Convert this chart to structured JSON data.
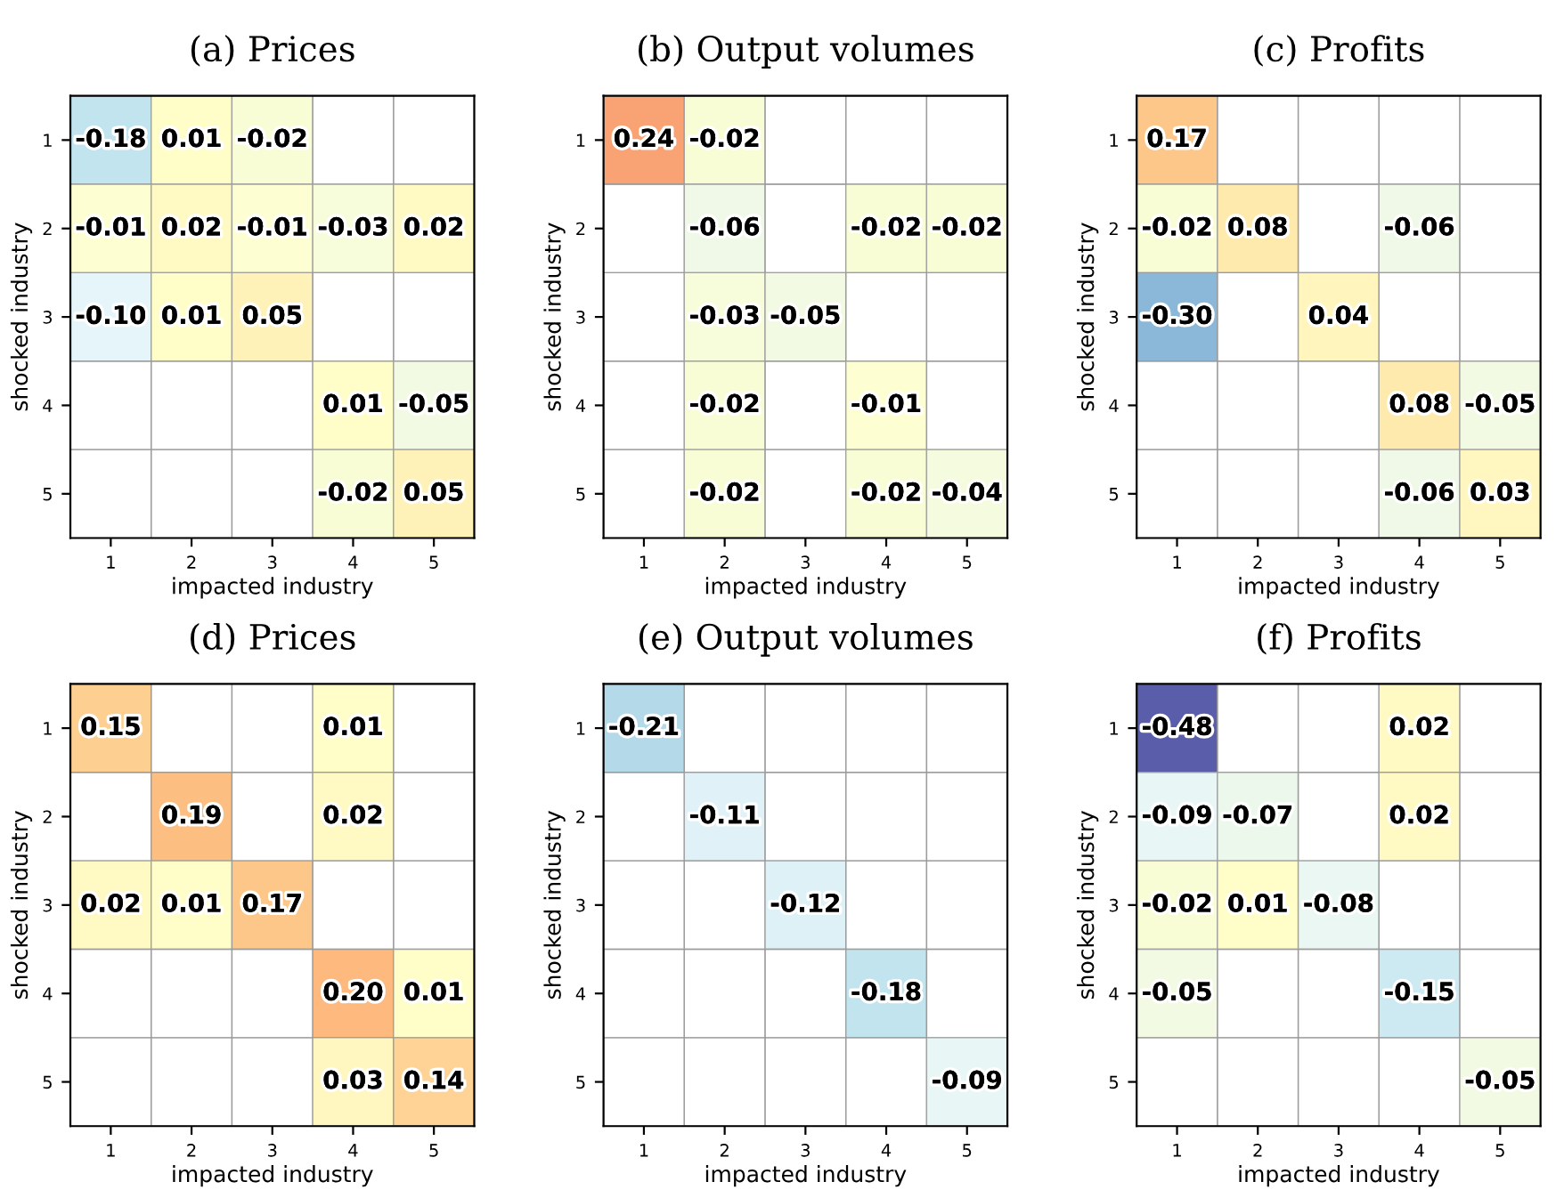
{
  "chart_data": [
    {
      "type": "heatmap",
      "title": "(a) Prices",
      "xlabel": "impacted industry",
      "ylabel": "shocked industry",
      "categories": [
        "1",
        "2",
        "3",
        "4",
        "5"
      ],
      "y_categories": [
        "1",
        "2",
        "3",
        "4",
        "5"
      ],
      "cells": [
        [
          -0.18,
          0.01,
          -0.02,
          null,
          null
        ],
        [
          -0.01,
          0.02,
          -0.01,
          -0.03,
          0.02
        ],
        [
          -0.1,
          0.01,
          0.05,
          null,
          null
        ],
        [
          null,
          null,
          null,
          0.01,
          -0.05
        ],
        [
          null,
          null,
          null,
          -0.02,
          0.05
        ]
      ],
      "cell_labels": [
        [
          "-0.18",
          "0.01",
          "-0.02",
          null,
          null
        ],
        [
          "-0.01",
          "0.02",
          "-0.01",
          "-0.03",
          "0.02"
        ],
        [
          "-0.10",
          "0.01",
          "0.05",
          null,
          null
        ],
        [
          null,
          null,
          null,
          "0.01",
          "-0.05"
        ],
        [
          null,
          null,
          null,
          "-0.02",
          "0.05"
        ]
      ]
    },
    {
      "type": "heatmap",
      "title": "(b) Output volumes",
      "xlabel": "impacted industry",
      "ylabel": "shocked industry",
      "categories": [
        "1",
        "2",
        "3",
        "4",
        "5"
      ],
      "y_categories": [
        "1",
        "2",
        "3",
        "4",
        "5"
      ],
      "cells": [
        [
          0.24,
          -0.02,
          null,
          null,
          null
        ],
        [
          null,
          -0.06,
          null,
          -0.02,
          -0.02
        ],
        [
          null,
          -0.03,
          -0.05,
          null,
          null
        ],
        [
          null,
          -0.02,
          null,
          -0.01,
          null
        ],
        [
          null,
          -0.02,
          null,
          -0.02,
          -0.04
        ]
      ],
      "cell_labels": [
        [
          "0.24",
          "-0.02",
          null,
          null,
          null
        ],
        [
          null,
          "-0.06",
          null,
          "-0.02",
          "-0.02"
        ],
        [
          null,
          "-0.03",
          "-0.05",
          null,
          null
        ],
        [
          null,
          "-0.02",
          null,
          "-0.01",
          null
        ],
        [
          null,
          "-0.02",
          null,
          "-0.02",
          "-0.04"
        ]
      ]
    },
    {
      "type": "heatmap",
      "title": "(c) Profits",
      "xlabel": "impacted industry",
      "ylabel": "shocked industry",
      "categories": [
        "1",
        "2",
        "3",
        "4",
        "5"
      ],
      "y_categories": [
        "1",
        "2",
        "3",
        "4",
        "5"
      ],
      "cells": [
        [
          0.17,
          null,
          null,
          null,
          null
        ],
        [
          -0.02,
          0.08,
          null,
          -0.06,
          null
        ],
        [
          -0.3,
          null,
          0.04,
          null,
          null
        ],
        [
          null,
          null,
          null,
          0.08,
          -0.05
        ],
        [
          null,
          null,
          null,
          -0.06,
          0.03
        ]
      ],
      "cell_labels": [
        [
          "0.17",
          null,
          null,
          null,
          null
        ],
        [
          "-0.02",
          "0.08",
          null,
          "-0.06",
          null
        ],
        [
          "-0.30",
          null,
          "0.04",
          null,
          null
        ],
        [
          null,
          null,
          null,
          "0.08",
          "-0.05"
        ],
        [
          null,
          null,
          null,
          "-0.06",
          "0.03"
        ]
      ]
    },
    {
      "type": "heatmap",
      "title": "(d) Prices",
      "xlabel": "impacted industry",
      "ylabel": "shocked industry",
      "categories": [
        "1",
        "2",
        "3",
        "4",
        "5"
      ],
      "y_categories": [
        "1",
        "2",
        "3",
        "4",
        "5"
      ],
      "cells": [
        [
          0.15,
          null,
          null,
          0.01,
          null
        ],
        [
          null,
          0.19,
          null,
          0.02,
          null
        ],
        [
          0.02,
          0.01,
          0.17,
          null,
          null
        ],
        [
          null,
          null,
          null,
          0.2,
          0.01
        ],
        [
          null,
          null,
          null,
          0.03,
          0.14
        ]
      ],
      "cell_labels": [
        [
          "0.15",
          null,
          null,
          "0.01",
          null
        ],
        [
          null,
          "0.19",
          null,
          "0.02",
          null
        ],
        [
          "0.02",
          "0.01",
          "0.17",
          null,
          null
        ],
        [
          null,
          null,
          null,
          "0.20",
          "0.01"
        ],
        [
          null,
          null,
          null,
          "0.03",
          "0.14"
        ]
      ]
    },
    {
      "type": "heatmap",
      "title": "(e) Output volumes",
      "xlabel": "impacted industry",
      "ylabel": "shocked industry",
      "categories": [
        "1",
        "2",
        "3",
        "4",
        "5"
      ],
      "y_categories": [
        "1",
        "2",
        "3",
        "4",
        "5"
      ],
      "cells": [
        [
          -0.21,
          null,
          null,
          null,
          null
        ],
        [
          null,
          -0.11,
          null,
          null,
          null
        ],
        [
          null,
          null,
          -0.12,
          null,
          null
        ],
        [
          null,
          null,
          null,
          -0.18,
          null
        ],
        [
          null,
          null,
          null,
          null,
          -0.09
        ]
      ],
      "cell_labels": [
        [
          "-0.21",
          null,
          null,
          null,
          null
        ],
        [
          null,
          "-0.11",
          null,
          null,
          null
        ],
        [
          null,
          null,
          "-0.12",
          null,
          null
        ],
        [
          null,
          null,
          null,
          "-0.18",
          null
        ],
        [
          null,
          null,
          null,
          null,
          "-0.09"
        ]
      ]
    },
    {
      "type": "heatmap",
      "title": "(f) Profits",
      "xlabel": "impacted industry",
      "ylabel": "shocked industry",
      "categories": [
        "1",
        "2",
        "3",
        "4",
        "5"
      ],
      "y_categories": [
        "1",
        "2",
        "3",
        "4",
        "5"
      ],
      "cells": [
        [
          -0.48,
          null,
          null,
          0.02,
          null
        ],
        [
          -0.09,
          -0.07,
          null,
          0.02,
          null
        ],
        [
          -0.02,
          0.01,
          -0.08,
          null,
          null
        ],
        [
          -0.05,
          null,
          null,
          -0.15,
          null
        ],
        [
          null,
          null,
          null,
          null,
          -0.05
        ]
      ],
      "cell_labels": [
        [
          "-0.48",
          null,
          null,
          "0.02",
          null
        ],
        [
          "-0.09",
          "-0.07",
          null,
          "0.02",
          null
        ],
        [
          "-0.02",
          "0.01",
          "-0.08",
          null,
          null
        ],
        [
          "-0.05",
          null,
          null,
          "-0.15",
          null
        ],
        [
          null,
          null,
          null,
          null,
          "-0.05"
        ]
      ]
    }
  ]
}
